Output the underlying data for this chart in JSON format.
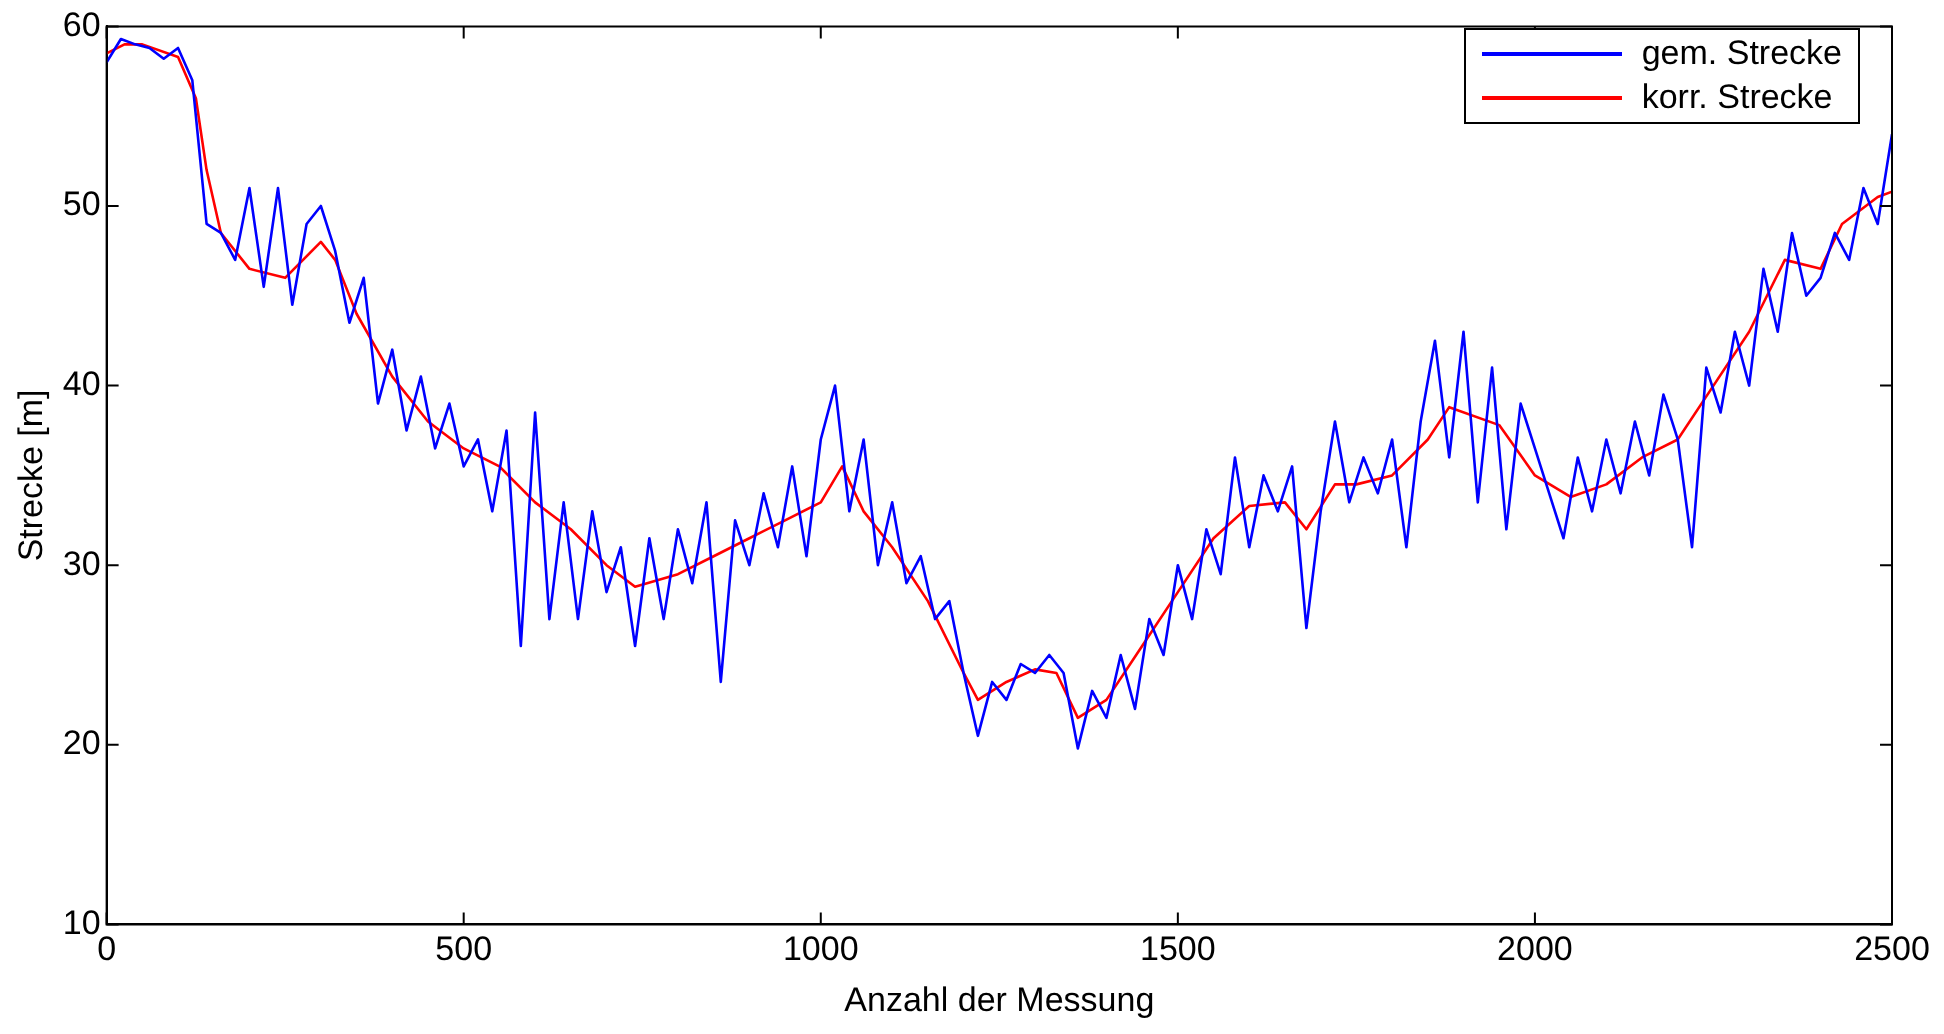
{
  "chart_data": {
    "type": "line",
    "xlabel": "Anzahl der Messung",
    "ylabel": "Strecke [m]",
    "xlim": [
      0,
      2500
    ],
    "xticks": [
      0,
      500,
      1000,
      1500,
      2000,
      2500
    ],
    "ylim": [
      10,
      60
    ],
    "yticks": [
      10,
      20,
      30,
      40,
      50,
      60
    ],
    "grid": false,
    "legend": "top right",
    "marker": "none",
    "line_style": "solid",
    "series": [
      {
        "name": "gem. Strecke",
        "color": "#0000ff",
        "x": [
          0,
          20,
          40,
          60,
          80,
          100,
          120,
          140,
          160,
          180,
          200,
          220,
          240,
          260,
          280,
          300,
          320,
          340,
          360,
          380,
          400,
          420,
          440,
          460,
          480,
          500,
          520,
          540,
          560,
          580,
          600,
          620,
          640,
          660,
          680,
          700,
          720,
          740,
          760,
          780,
          800,
          820,
          840,
          860,
          880,
          900,
          920,
          940,
          960,
          980,
          1000,
          1020,
          1040,
          1060,
          1080,
          1100,
          1120,
          1140,
          1160,
          1180,
          1200,
          1220,
          1240,
          1260,
          1280,
          1300,
          1320,
          1340,
          1360,
          1380,
          1400,
          1420,
          1440,
          1460,
          1480,
          1500,
          1520,
          1540,
          1560,
          1580,
          1600,
          1620,
          1640,
          1660,
          1680,
          1700,
          1720,
          1740,
          1760,
          1780,
          1800,
          1820,
          1840,
          1860,
          1880,
          1900,
          1920,
          1940,
          1960,
          1980,
          2000,
          2020,
          2040,
          2060,
          2080,
          2100,
          2120,
          2140,
          2160,
          2180,
          2200,
          2220,
          2240,
          2260,
          2280,
          2300,
          2320,
          2340,
          2360,
          2380,
          2400,
          2420,
          2440,
          2460,
          2480,
          2500
        ],
        "values": [
          58,
          59.3,
          59,
          58.8,
          58.2,
          58.8,
          57,
          49,
          48.5,
          47,
          51,
          45.5,
          51,
          44.5,
          49,
          50,
          47.5,
          43.5,
          46,
          39,
          42,
          37.5,
          40.5,
          36.5,
          39,
          35.5,
          37,
          33,
          37.5,
          25.5,
          38.5,
          27,
          33.5,
          27,
          33,
          28.5,
          31,
          25.5,
          31.5,
          27,
          32,
          29,
          33.5,
          23.5,
          32.5,
          30,
          34,
          31,
          35.5,
          30.5,
          37,
          40,
          33,
          37,
          30,
          33.5,
          29,
          30.5,
          27,
          28,
          24,
          20.5,
          23.5,
          22.5,
          24.5,
          24,
          25,
          24,
          19.8,
          23,
          21.5,
          25,
          22,
          27,
          25,
          30,
          27,
          32,
          29.5,
          36,
          31,
          35,
          33,
          35.5,
          26.5,
          33,
          38,
          33.5,
          36,
          34,
          37,
          31,
          38,
          42.5,
          36,
          43,
          33.5,
          41,
          32,
          39,
          36.5,
          34,
          31.5,
          36,
          33,
          37,
          34,
          38,
          35,
          39.5,
          37,
          31,
          41,
          38.5,
          43,
          40,
          46.5,
          43,
          48.5,
          45,
          46,
          48.5,
          47,
          51,
          49,
          54
        ]
      },
      {
        "name": "korr. Strecke",
        "color": "#ff0000",
        "x": [
          0,
          25,
          50,
          100,
          125,
          140,
          160,
          200,
          250,
          300,
          320,
          350,
          400,
          450,
          500,
          550,
          600,
          650,
          700,
          740,
          800,
          850,
          900,
          950,
          1000,
          1030,
          1060,
          1100,
          1150,
          1200,
          1220,
          1260,
          1300,
          1330,
          1360,
          1400,
          1450,
          1500,
          1550,
          1600,
          1650,
          1680,
          1720,
          1750,
          1800,
          1850,
          1880,
          1950,
          2000,
          2050,
          2100,
          2150,
          2200,
          2250,
          2300,
          2350,
          2400,
          2430,
          2480,
          2500
        ],
        "values": [
          58.5,
          59,
          59,
          58.3,
          56,
          52,
          48.5,
          46.5,
          46,
          48,
          47,
          44,
          40.5,
          38,
          36.5,
          35.5,
          33.5,
          32,
          30,
          28.8,
          29.5,
          30.5,
          31.5,
          32.5,
          33.5,
          35.5,
          33,
          31,
          28,
          24,
          22.5,
          23.5,
          24.2,
          24,
          21.5,
          22.5,
          25.5,
          28.5,
          31.5,
          33.3,
          33.5,
          32,
          34.5,
          34.5,
          35,
          37,
          38.8,
          37.8,
          35,
          33.8,
          34.5,
          36,
          37,
          40,
          43,
          47,
          46.5,
          49,
          50.5,
          50.8
        ]
      }
    ]
  }
}
